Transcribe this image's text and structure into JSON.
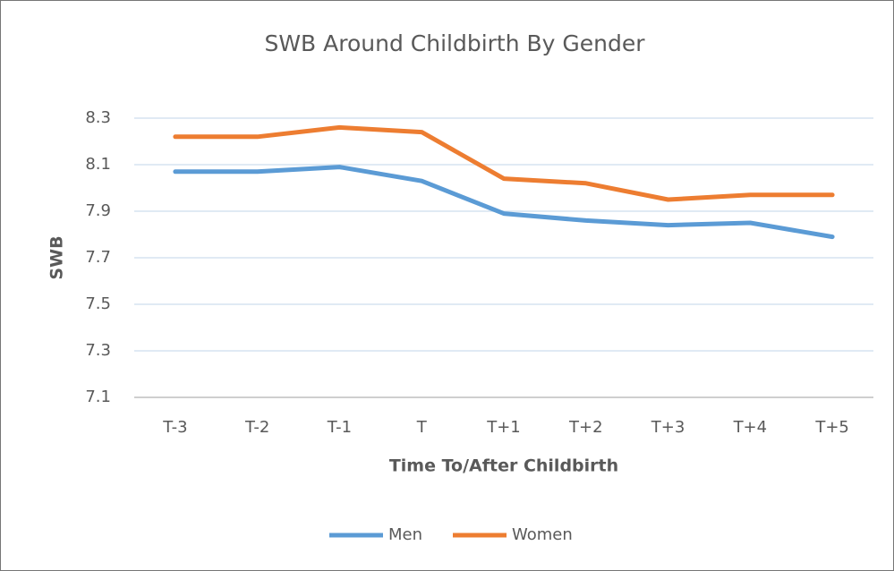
{
  "chart_data": {
    "type": "line",
    "title": "SWB Around Childbirth By Gender",
    "xlabel": "Time To/After Childbirth",
    "ylabel": "SWB",
    "categories": [
      "T-3",
      "T-2",
      "T-1",
      "T",
      "T+1",
      "T+2",
      "T+3",
      "T+4",
      "T+5"
    ],
    "series": [
      {
        "name": "Men",
        "color": "#5b9bd5",
        "values": [
          8.07,
          8.07,
          8.09,
          8.03,
          7.89,
          7.86,
          7.84,
          7.85,
          7.79
        ]
      },
      {
        "name": "Women",
        "color": "#ed7d31",
        "values": [
          8.22,
          8.22,
          8.26,
          8.24,
          8.04,
          8.02,
          7.95,
          7.97,
          7.97
        ]
      }
    ],
    "ylim": [
      7.1,
      8.3
    ],
    "yticks": [
      7.1,
      7.3,
      7.5,
      7.7,
      7.9,
      8.1,
      8.3
    ],
    "grid": true,
    "legend": "bottom"
  }
}
